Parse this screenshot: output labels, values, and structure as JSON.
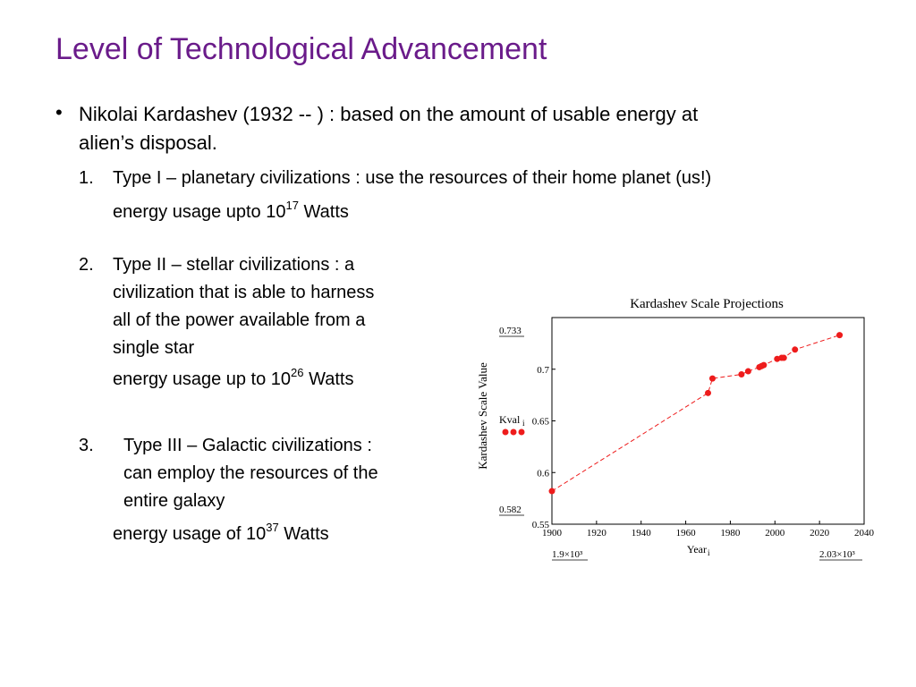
{
  "slide": {
    "title": "Level of Technological Advancement",
    "bullet_text_line1": "Nikolai Kardashev (1932 -- ) : based on the amount of usable energy at",
    "bullet_text_line2": "alien’s disposal.",
    "item1": {
      "number": "1.",
      "text": "Type I – planetary civilizations : use the resources of their home planet (us!)",
      "energy_prefix": "energy usage upto 10",
      "energy_exp": "17",
      "energy_suffix": " Watts"
    },
    "item2": {
      "number": "2.",
      "lines": [
        "Type II – stellar civilizations : a",
        "civilization that is able to harness",
        "all of the power available from a",
        "single star"
      ],
      "energy_prefix": "energy usage up to 10",
      "energy_exp": "26",
      "energy_suffix": " Watts"
    },
    "item3": {
      "number": "3.",
      "lines": [
        "Type III – Galactic civilizations :",
        "can employ the resources of the",
        "entire galaxy"
      ],
      "energy_prefix": "energy usage of 10",
      "energy_exp": "37",
      "energy_suffix": " Watts"
    }
  },
  "chart_data": {
    "type": "line",
    "title": "Kardashev Scale Projections",
    "xlabel": "Year",
    "xlabel_subscript": "i",
    "ylabel": "Kardashev Scale Value",
    "xlim": [
      1900,
      2040
    ],
    "ylim": [
      0.55,
      0.75
    ],
    "x_ticks": [
      1900,
      1920,
      1940,
      1960,
      1980,
      2000,
      2020,
      2040
    ],
    "y_ticks": [
      "0.55",
      "0.6",
      "0.65",
      "0.7"
    ],
    "x_range_labels": [
      "1.9×10³",
      "2.03×10³"
    ],
    "y_range_labels": [
      "0.733",
      "0.582"
    ],
    "legend_label": "Kval",
    "legend_label_subscript": "i",
    "series_color": "#ee1c1c",
    "series": [
      {
        "x": [
          1900,
          1970,
          1972,
          1985,
          1988,
          1993,
          1994,
          1995,
          2001,
          2003,
          2004,
          2009,
          2029
        ],
        "y": [
          0.582,
          0.677,
          0.691,
          0.695,
          0.698,
          0.702,
          0.703,
          0.704,
          0.71,
          0.711,
          0.711,
          0.719,
          0.733
        ]
      }
    ]
  }
}
